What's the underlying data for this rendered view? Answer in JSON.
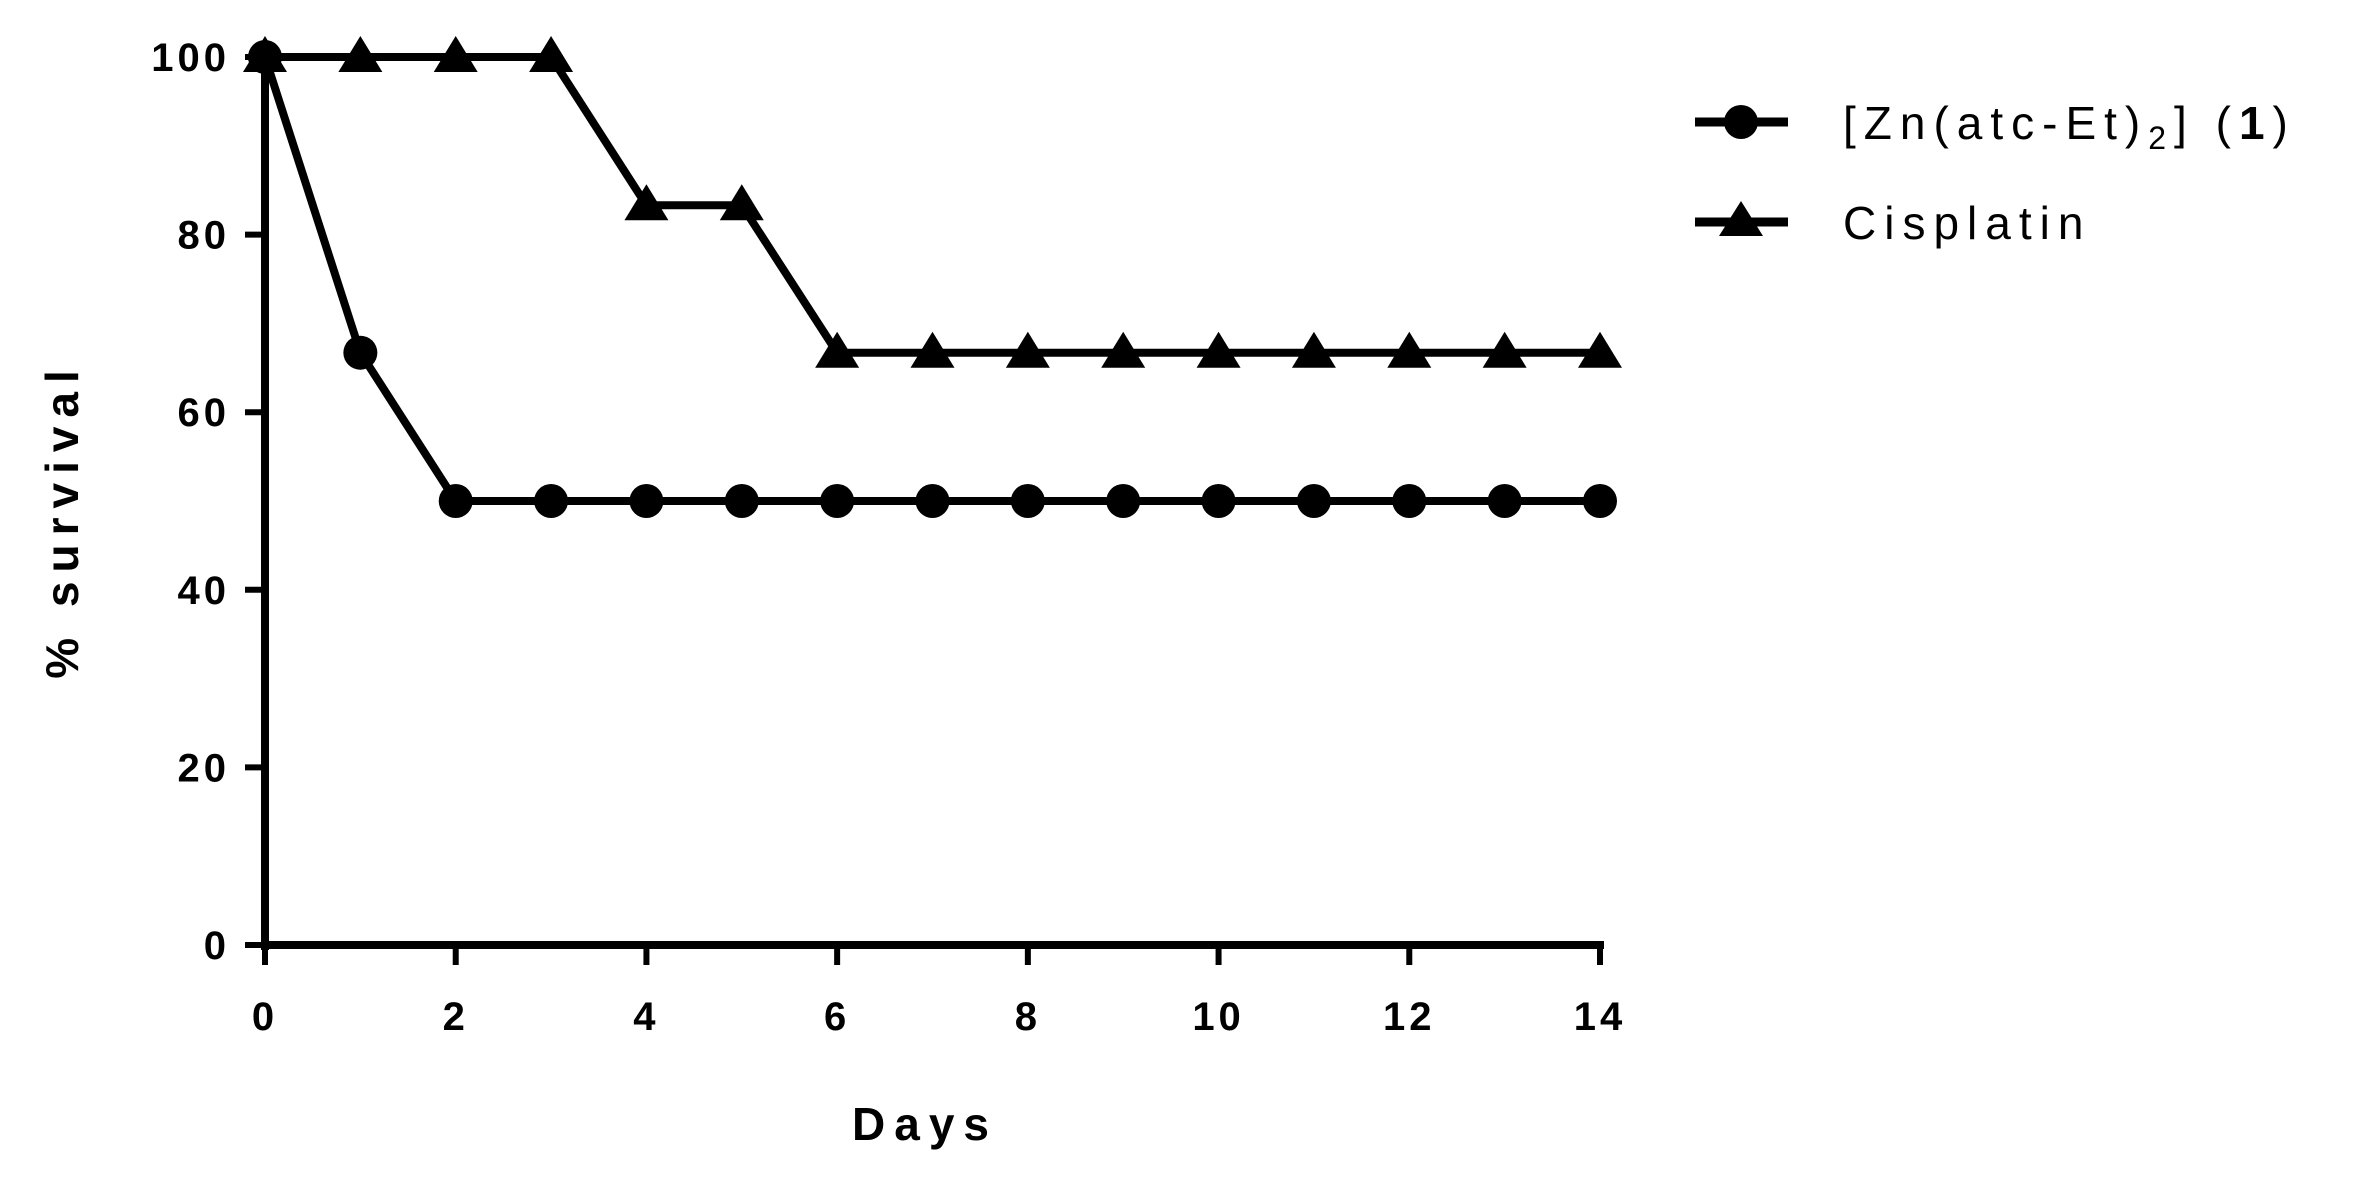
{
  "chart_data": {
    "type": "line",
    "xlabel": "Days",
    "ylabel": "% survival",
    "xlim": [
      0,
      14
    ],
    "ylim": [
      0,
      100
    ],
    "x_ticks": [
      "0",
      "2",
      "4",
      "6",
      "8",
      "10",
      "12",
      "14"
    ],
    "y_ticks": [
      "0",
      "20",
      "40",
      "60",
      "80",
      "100"
    ],
    "grid": false,
    "legend_position": "top-right",
    "x": [
      0,
      1,
      2,
      3,
      4,
      5,
      6,
      7,
      8,
      9,
      10,
      11,
      12,
      13,
      14
    ],
    "series": [
      {
        "name": "[Zn(atc-Et)2] (1)",
        "name_parts": {
          "prefix": "[Zn(atc-Et)",
          "sub": "2",
          "suffix": "] (",
          "bold": "1",
          "end": ")"
        },
        "marker": "circle",
        "color": "#000000",
        "values": [
          100,
          66.7,
          50,
          50,
          50,
          50,
          50,
          50,
          50,
          50,
          50,
          50,
          50,
          50,
          50
        ]
      },
      {
        "name": "Cisplatin",
        "marker": "triangle",
        "color": "#000000",
        "values": [
          100,
          100,
          100,
          100,
          83.3,
          83.3,
          66.7,
          66.7,
          66.7,
          66.7,
          66.7,
          66.7,
          66.7,
          66.7,
          66.7
        ]
      }
    ]
  }
}
